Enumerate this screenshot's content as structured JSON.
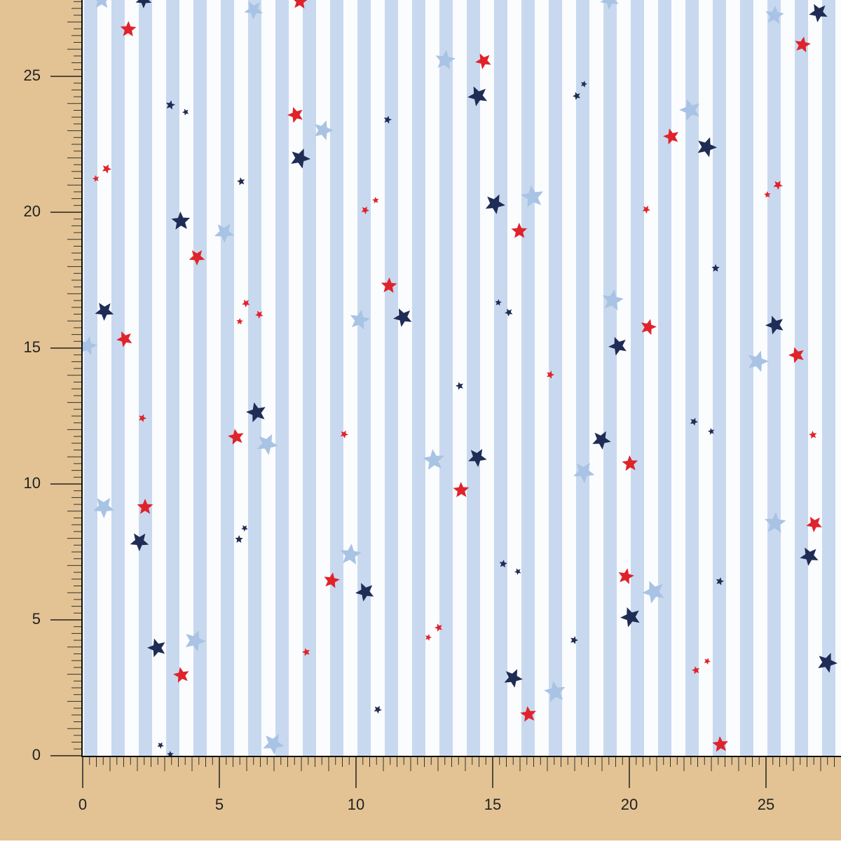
{
  "rulers": {
    "left": {
      "labels": [
        0,
        5,
        10,
        15,
        20,
        25
      ]
    },
    "bottom": {
      "labels": [
        0,
        5,
        10,
        15,
        20,
        25
      ]
    }
  }
}
